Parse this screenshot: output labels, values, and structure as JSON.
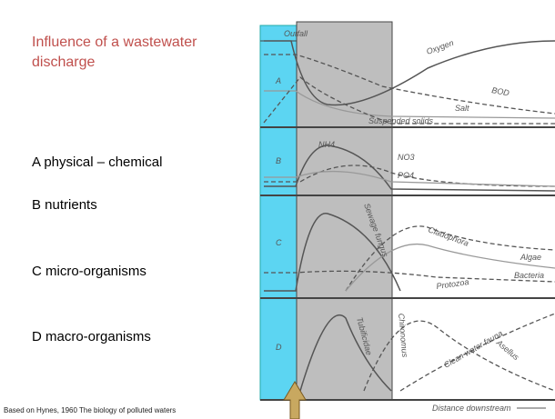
{
  "slide": {
    "title": "Influence of a wastewater discharge",
    "items": [
      "A  physical – chemical",
      "B nutrients",
      "C micro-organisms",
      "D macro-organisms"
    ],
    "footnote": "Based on Hynes, 1960 The biology of polluted waters"
  },
  "diagram": {
    "outfall": "Outfall",
    "panels": [
      "A",
      "B",
      "C",
      "D"
    ],
    "labels": {
      "oxygen": "Oxygen",
      "bod": "BOD",
      "salt": "Salt",
      "suspended": "Suspended solids",
      "nh4": "NH4",
      "no3": "NO3",
      "po4": "PO4",
      "fungus": "Sewage fungus",
      "cladophora": "Cladophora",
      "algae": "Algae",
      "bacteria": "Bacteria",
      "protozoa": "Protozoa",
      "tubificidae": "Tubificidae",
      "chironomus": "Chironomus",
      "clean": "Clean water fauna",
      "asellus": "Asellus"
    },
    "axis": "Distance downstream"
  }
}
